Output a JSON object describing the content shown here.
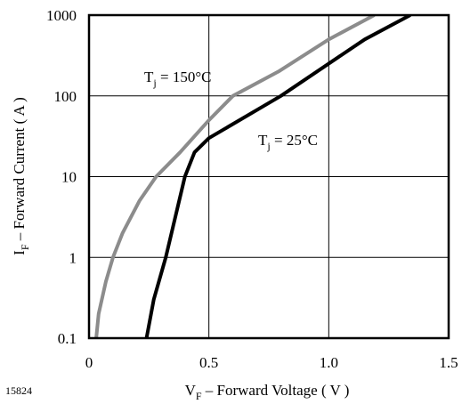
{
  "chart_data": {
    "type": "line",
    "figure_id": "15824",
    "xlabel": {
      "main": "V",
      "sub": "F",
      "rest": " – Forward Voltage ( V )"
    },
    "ylabel": {
      "main": "I",
      "sub": "F",
      "rest": " – Forward Current ( A )"
    },
    "xlim": [
      0,
      1.5
    ],
    "ylim": [
      0.1,
      1000
    ],
    "yscale": "log",
    "grid": true,
    "x_ticks": [
      {
        "value": 0,
        "label": "0"
      },
      {
        "value": 0.5,
        "label": "0.5"
      },
      {
        "value": 1.0,
        "label": "1.0"
      },
      {
        "value": 1.5,
        "label": "1.5"
      }
    ],
    "y_ticks": [
      {
        "value": 0.1,
        "label": "0.1"
      },
      {
        "value": 1,
        "label": "1"
      },
      {
        "value": 10,
        "label": "10"
      },
      {
        "value": 100,
        "label": "100"
      },
      {
        "value": 1000,
        "label": "1000"
      }
    ],
    "series": [
      {
        "label_main": "T",
        "label_sub": "j",
        "label_rest": " = 150°C",
        "color": "#8c8c8c",
        "points": [
          [
            0.03,
            0.1
          ],
          [
            0.04,
            0.2
          ],
          [
            0.07,
            0.5
          ],
          [
            0.1,
            1
          ],
          [
            0.14,
            2
          ],
          [
            0.21,
            5
          ],
          [
            0.28,
            10
          ],
          [
            0.38,
            20
          ],
          [
            0.5,
            50
          ],
          [
            0.6,
            100
          ],
          [
            0.79,
            200
          ],
          [
            1.0,
            500
          ],
          [
            1.19,
            1000
          ]
        ]
      },
      {
        "label_main": "T",
        "label_sub": "j",
        "label_rest": " = 25°C",
        "color": "#000000",
        "points": [
          [
            0.24,
            0.1
          ],
          [
            0.27,
            0.3
          ],
          [
            0.32,
            1
          ],
          [
            0.4,
            10
          ],
          [
            0.44,
            20
          ],
          [
            0.5,
            30
          ],
          [
            0.8,
            100
          ],
          [
            1.15,
            500
          ],
          [
            1.34,
            1000
          ]
        ]
      }
    ]
  }
}
